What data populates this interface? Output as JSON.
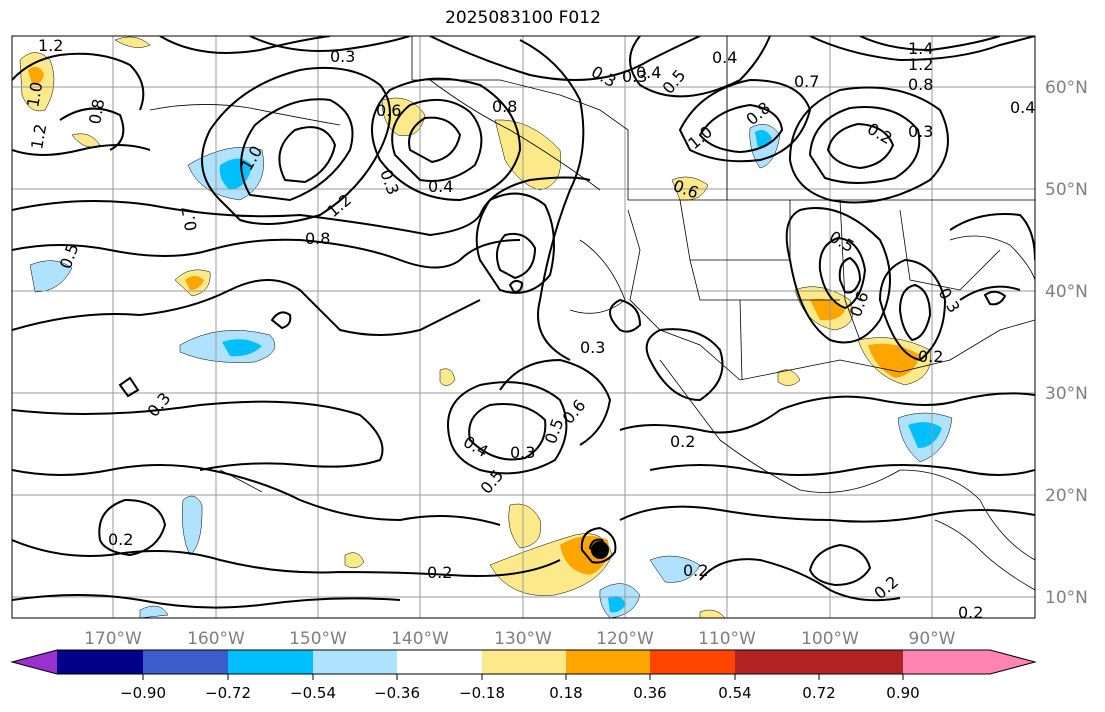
{
  "title": "2025083100 F012",
  "lon_ticks": [
    "170°W",
    "160°W",
    "150°W",
    "140°W",
    "130°W",
    "120°W",
    "110°W",
    "100°W",
    "90°W"
  ],
  "lat_ticks": [
    "60°N",
    "50°N",
    "40°N",
    "30°N",
    "20°N",
    "10°N"
  ],
  "colorbar": {
    "tick_labels": [
      "−0.90",
      "−0.72",
      "−0.54",
      "−0.36",
      "−0.18",
      "0.18",
      "0.36",
      "0.54",
      "0.72",
      "0.90"
    ],
    "colors": [
      "#9b30d0",
      "#00008b",
      "#3a5fcd",
      "#00bfff",
      "#aee2ff",
      "#ffffff",
      "#fce98a",
      "#ffa500",
      "#ff4500",
      "#b22222",
      "#ff85b0"
    ]
  },
  "contour_labels": [
    "1.2",
    "1.0",
    "1.2",
    "0.8",
    "0.3",
    "0.6",
    "0.4",
    "0.3",
    "0.8",
    "1.2",
    "0.8",
    "1.0",
    "0.7",
    "0.5",
    "0.4",
    "0.3",
    "0.3",
    "0.4",
    "0.7",
    "0.5",
    "1.0",
    "0.8",
    "0.6",
    "0.2",
    "0.3",
    "1.4",
    "1.2",
    "0.8",
    "0.4",
    "0.5",
    "0.5",
    "0.6",
    "0.3",
    "0.2",
    "0.3",
    "0.6",
    "0.5",
    "0.4",
    "0.3",
    "0.3",
    "0.2",
    "0.2",
    "0.2",
    "0.2",
    "0.2",
    "0.2"
  ]
}
